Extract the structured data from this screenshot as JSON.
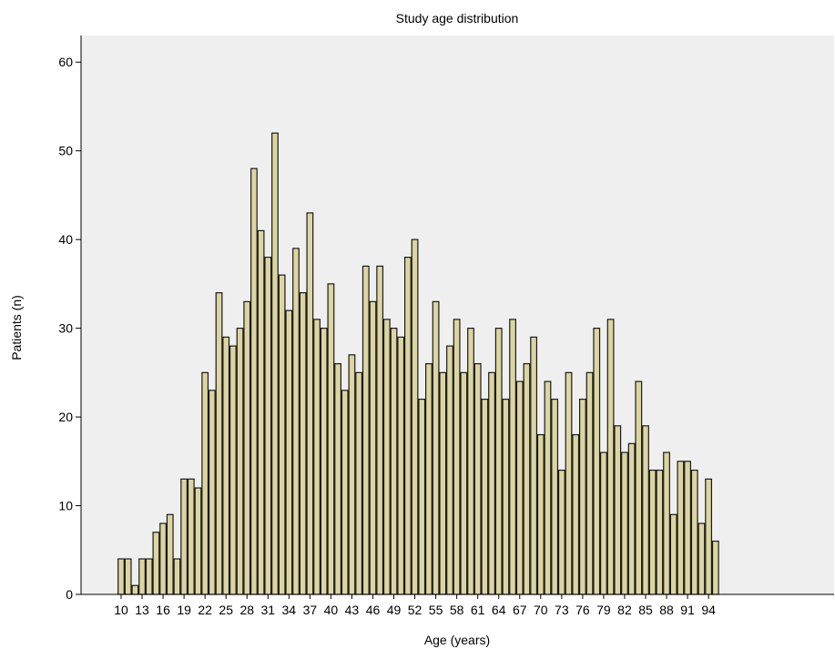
{
  "chart_data": {
    "type": "bar",
    "title": "Study age distribution",
    "xlabel": "Age (years)",
    "ylabel": "Patients (n)",
    "ylim": [
      0,
      63
    ],
    "yticks": [
      0,
      10,
      20,
      30,
      40,
      50,
      60
    ],
    "xticks": [
      10,
      13,
      16,
      19,
      22,
      25,
      28,
      31,
      34,
      37,
      40,
      43,
      46,
      49,
      52,
      55,
      58,
      61,
      64,
      67,
      70,
      73,
      76,
      79,
      82,
      85,
      88,
      91,
      94
    ],
    "grid": false,
    "legend": "none",
    "bar_fill": "#dcd5a2",
    "bar_stroke": "#1a1a1a",
    "plot_background": "#efefef",
    "categories": [
      10,
      11,
      12,
      13,
      14,
      15,
      16,
      17,
      18,
      19,
      20,
      21,
      22,
      23,
      24,
      25,
      26,
      27,
      28,
      29,
      30,
      31,
      32,
      33,
      34,
      35,
      36,
      37,
      38,
      39,
      40,
      41,
      42,
      43,
      44,
      45,
      46,
      47,
      48,
      49,
      50,
      51,
      52,
      53,
      54,
      55,
      56,
      57,
      58,
      59,
      60,
      61,
      62,
      63,
      64,
      65,
      66,
      67,
      68,
      69,
      70,
      71,
      72,
      73,
      74,
      75,
      76,
      77,
      78,
      79,
      80,
      81,
      82,
      83,
      84,
      85,
      86,
      87,
      88,
      89,
      90,
      91,
      92,
      93,
      94,
      95
    ],
    "values": [
      4,
      4,
      1,
      4,
      4,
      7,
      8,
      9,
      4,
      13,
      13,
      12,
      25,
      23,
      34,
      29,
      28,
      30,
      33,
      48,
      41,
      38,
      52,
      36,
      32,
      39,
      34,
      43,
      31,
      30,
      35,
      26,
      23,
      27,
      25,
      37,
      33,
      37,
      31,
      30,
      29,
      38,
      40,
      22,
      26,
      33,
      25,
      28,
      31,
      25,
      30,
      26,
      22,
      25,
      30,
      22,
      31,
      24,
      26,
      29,
      18,
      24,
      22,
      14,
      25,
      18,
      22,
      25,
      30,
      16,
      31,
      19,
      16,
      17,
      24,
      19,
      14,
      14,
      16,
      9,
      15,
      15,
      14,
      8,
      13,
      6
    ]
  }
}
